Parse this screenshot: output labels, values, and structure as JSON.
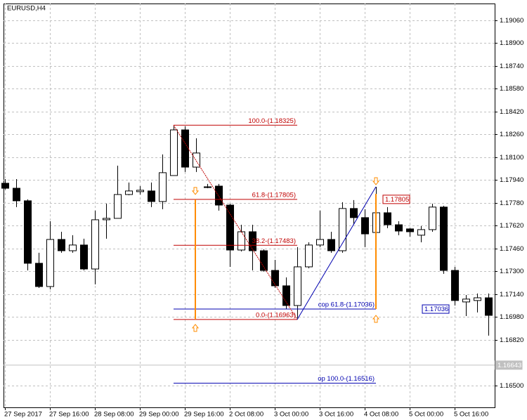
{
  "chart_data": {
    "type": "candlestick",
    "title": "EURUSD,H4",
    "categories": [
      "27 Sep 2017",
      null,
      null,
      null,
      "27 Sep 16:00",
      null,
      null,
      null,
      "28 Sep 08:00",
      null,
      null,
      null,
      "29 Sep 00:00",
      null,
      null,
      null,
      "29 Sep 16:00",
      null,
      null,
      null,
      "2 Oct 08:00",
      null,
      null,
      null,
      "3 Oct 00:00",
      null,
      null,
      null,
      "3 Oct 16:00",
      null,
      null,
      null,
      "4 Oct 08:00",
      null,
      null,
      null,
      "5 Oct 00:00",
      null,
      null,
      null,
      "5 Oct 16:00",
      null,
      null,
      null
    ],
    "open": [
      1.17918,
      1.17883,
      1.17795,
      1.17357,
      1.17194,
      1.17524,
      1.17445,
      1.17485,
      1.17317,
      1.17662,
      1.17672,
      1.17839,
      1.17859,
      1.17864,
      1.1779,
      1.17972,
      1.18292,
      1.18031,
      1.17893,
      1.17898,
      1.17765,
      1.1745,
      1.17578,
      1.17445,
      1.17307,
      1.17199,
      1.17061,
      1.17332,
      1.17485,
      1.17524,
      1.17445,
      1.17741,
      1.17677,
      1.17573,
      1.17711,
      1.17627,
      1.17598,
      1.17554,
      1.17593,
      1.17751,
      1.17307,
      1.17086,
      1.17096,
      1.17115
    ],
    "high": [
      1.17947,
      1.17947,
      1.17805,
      1.17431,
      1.17652,
      1.17578,
      1.17554,
      1.17529,
      1.17726,
      1.17775,
      1.18041,
      1.17923,
      1.17898,
      1.17923,
      1.1812,
      1.18325,
      1.18317,
      1.18233,
      1.17913,
      1.17913,
      1.17775,
      1.17627,
      1.17627,
      1.17455,
      1.17381,
      1.17258,
      1.1747,
      1.17504,
      1.17726,
      1.17578,
      1.17785,
      1.178,
      1.17736,
      1.17893,
      1.17751,
      1.17652,
      1.17603,
      1.17618,
      1.17775,
      1.1776,
      1.17332,
      1.17135,
      1.17145,
      1.17145
    ],
    "low": [
      1.17874,
      1.17751,
      1.17307,
      1.17184,
      1.17174,
      1.17431,
      1.17431,
      1.17307,
      1.17209,
      1.17529,
      1.17672,
      1.17834,
      1.17839,
      1.17751,
      1.17736,
      1.17972,
      1.17997,
      1.17997,
      1.17883,
      1.17726,
      1.17332,
      1.1744,
      1.17307,
      1.17298,
      1.17184,
      1.17037,
      1.16963,
      1.17322,
      1.1747,
      1.17431,
      1.17431,
      1.17627,
      1.1747,
      1.17504,
      1.17603,
      1.17554,
      1.17544,
      1.17504,
      1.17578,
      1.17283,
      1.17061,
      1.16987,
      1.17012,
      1.1685
    ],
    "close": [
      1.17883,
      1.17795,
      1.17357,
      1.17194,
      1.17524,
      1.17445,
      1.17485,
      1.17317,
      1.17662,
      1.17672,
      1.17839,
      1.17864,
      1.17869,
      1.1779,
      1.17992,
      1.18292,
      1.18031,
      1.1813,
      1.17888,
      1.17765,
      1.1745,
      1.17578,
      1.17445,
      1.17307,
      1.17199,
      1.17061,
      1.17332,
      1.17485,
      1.17524,
      1.17445,
      1.17741,
      1.17677,
      1.17563,
      1.17711,
      1.17627,
      1.17583,
      1.17578,
      1.17593,
      1.17751,
      1.17307,
      1.17096,
      1.17106,
      1.17115,
      1.16992
    ],
    "up_color": "#ffffff",
    "down_color": "#000000",
    "ylim": [
      1.16347,
      1.19178
    ],
    "yticks": [
      {
        "value": 1.1906,
        "label": "1.19060"
      },
      {
        "value": 1.189,
        "label": "1.18900"
      },
      {
        "value": 1.1874,
        "label": "1.18740"
      },
      {
        "value": 1.1858,
        "label": "1.18580"
      },
      {
        "value": 1.1842,
        "label": "1.18420"
      },
      {
        "value": 1.1826,
        "label": "1.18260"
      },
      {
        "value": 1.181,
        "label": "1.18100"
      },
      {
        "value": 1.1794,
        "label": "1.17940"
      },
      {
        "value": 1.1778,
        "label": "1.17780"
      },
      {
        "value": 1.1762,
        "label": "1.17620"
      },
      {
        "value": 1.1746,
        "label": "1.17460"
      },
      {
        "value": 1.173,
        "label": "1.17300"
      },
      {
        "value": 1.1714,
        "label": "1.17140"
      },
      {
        "value": 1.1698,
        "label": "1.16980"
      },
      {
        "value": 1.1682,
        "label": "1.16820"
      },
      {
        "value": 1.165,
        "label": "1.16500"
      }
    ],
    "grid": true,
    "annotations": [
      {
        "label": "100.0-(1.18325)",
        "value": 1.18325,
        "color": "#c00000"
      },
      {
        "label": "61.8-(1.17805)",
        "value": 1.17805,
        "color": "#c00000"
      },
      {
        "label": "38.2-(1.17483)",
        "value": 1.17483,
        "color": "#c00000"
      },
      {
        "label": "0.0-(1.16963)",
        "value": 1.16963,
        "color": "#c00000"
      },
      {
        "label": "cop 61.8-(1.17036)",
        "value": 1.17036,
        "color": "#0000b0"
      },
      {
        "label": "op 100.0-(1.16516)",
        "value": 1.16516,
        "color": "#0000b0"
      }
    ],
    "price_tags": [
      {
        "value": 1.17805,
        "color": "#c00000"
      },
      {
        "value": 1.17036,
        "color": "#0000b0"
      },
      {
        "value": 1.16643,
        "color": "#c0c0c0"
      }
    ]
  }
}
